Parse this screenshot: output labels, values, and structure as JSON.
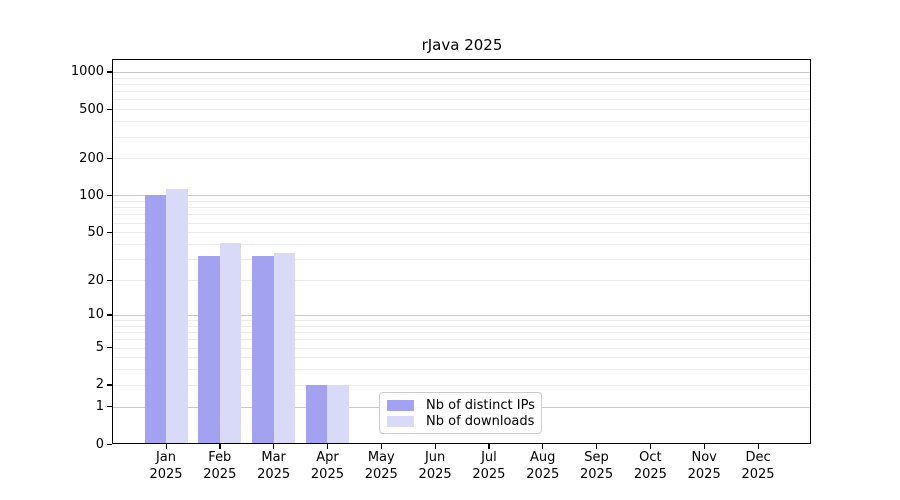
{
  "title": "rJava 2025",
  "chart_data": {
    "type": "bar",
    "title": "rJava 2025",
    "categories": [
      "Jan 2025",
      "Feb 2025",
      "Mar 2025",
      "Apr 2025",
      "May 2025",
      "Jun 2025",
      "Jul 2025",
      "Aug 2025",
      "Sep 2025",
      "Oct 2025",
      "Nov 2025",
      "Dec 2025"
    ],
    "x_tick_month": [
      "Jan",
      "Feb",
      "Mar",
      "Apr",
      "May",
      "Jun",
      "Jul",
      "Aug",
      "Sep",
      "Oct",
      "Nov",
      "Dec"
    ],
    "x_tick_year": "2025",
    "series": [
      {
        "name": "Nb of distinct IPs",
        "color": "#a2a2f0",
        "values": [
          101,
          32,
          32,
          2,
          0,
          0,
          0,
          0,
          0,
          0,
          0,
          0
        ]
      },
      {
        "name": "Nb of downloads",
        "color": "#d9d9f8",
        "values": [
          112,
          41,
          34,
          2,
          0,
          0,
          0,
          0,
          0,
          0,
          0,
          0
        ]
      }
    ],
    "xlabel": "",
    "ylabel": "",
    "y_scale": "log10(1+x)",
    "y_ticks": [
      1000,
      500,
      200,
      100,
      50,
      20,
      10,
      5,
      2,
      1,
      0
    ],
    "ylim": [
      0,
      1250
    ],
    "grid": "horizontal",
    "grid_major_at": [
      1,
      10,
      100,
      1000
    ],
    "legend_position": "inside-bottom-center",
    "colors": {
      "grid_major": "#c9c9c9",
      "grid_minor": "#ebebeb",
      "axis": "#000000",
      "text": "#000000",
      "legend_border": "#cccccc",
      "background": "#ffffff"
    }
  }
}
